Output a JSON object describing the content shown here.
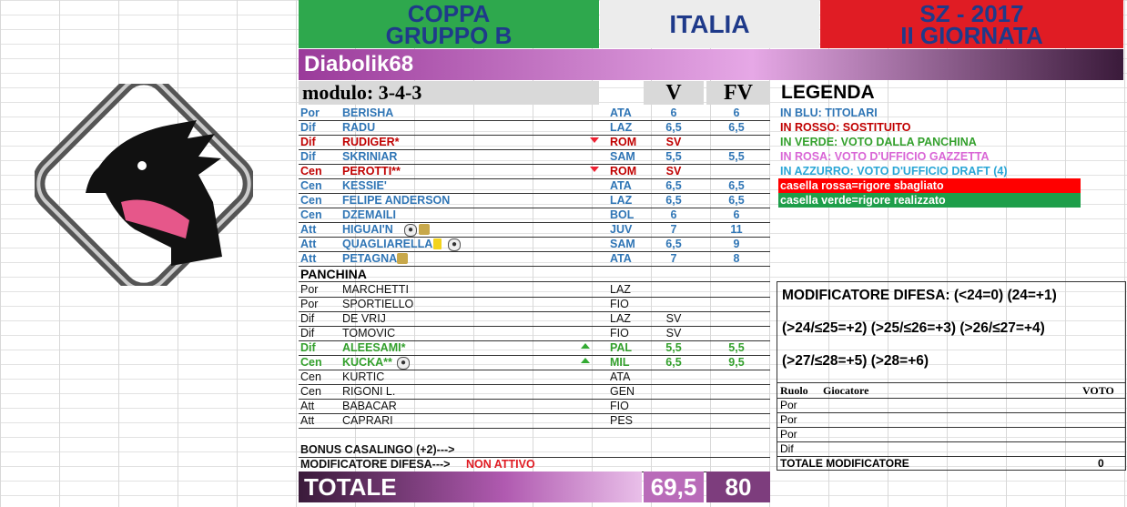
{
  "header": {
    "left_line1": "COPPA",
    "left_line2": "GRUPPO B",
    "center": "ITALIA",
    "right_line1": "SZ - 2017",
    "right_line2": "II GIORNATA",
    "colors": {
      "left": "#2ea84d",
      "center": "#ececec",
      "right": "#e01c24"
    }
  },
  "team_name": "Diabolik68",
  "modulo": "modulo: 3-4-3",
  "col_v": "V",
  "col_fv": "FV",
  "starters": [
    {
      "role": "Por",
      "name": "BERISHA",
      "team": "ATA",
      "v": "6",
      "fv": "6",
      "color": "blue"
    },
    {
      "role": "Dif",
      "name": "RADU",
      "team": "LAZ",
      "v": "6,5",
      "fv": "6,5",
      "color": "blue"
    },
    {
      "role": "Dif",
      "name": "RUDIGER*",
      "team": "ROM",
      "v": "SV",
      "fv": "",
      "color": "red",
      "marker": "down"
    },
    {
      "role": "Dif",
      "name": "SKRINIAR",
      "team": "SAM",
      "v": "5,5",
      "fv": "5,5",
      "color": "blue"
    },
    {
      "role": "Cen",
      "name": "PEROTTI**",
      "team": "ROM",
      "v": "SV",
      "fv": "",
      "color": "red",
      "marker": "down"
    },
    {
      "role": "Cen",
      "name": "KESSIE'",
      "team": "ATA",
      "v": "6,5",
      "fv": "6,5",
      "color": "blue"
    },
    {
      "role": "Cen",
      "name": "FELIPE ANDERSON",
      "team": "LAZ",
      "v": "6,5",
      "fv": "6,5",
      "color": "blue"
    },
    {
      "role": "Cen",
      "name": "DZEMAILI",
      "team": "BOL",
      "v": "6",
      "fv": "6",
      "color": "blue"
    },
    {
      "role": "Att",
      "name": "HIGUAI'N",
      "team": "JUV",
      "v": "7",
      "fv": "11",
      "color": "blue",
      "icons": [
        "ball",
        "boot"
      ]
    },
    {
      "role": "Att",
      "name": "QUAGLIARELLA",
      "team": "SAM",
      "v": "6,5",
      "fv": "9",
      "color": "blue",
      "icons": [
        "card",
        "ball"
      ]
    },
    {
      "role": "Att",
      "name": "PETAGNA",
      "team": "ATA",
      "v": "7",
      "fv": "8",
      "color": "blue",
      "icons": [
        "boot"
      ]
    }
  ],
  "panchina_label": "PANCHINA",
  "bench": [
    {
      "role": "Por",
      "name": "MARCHETTI",
      "team": "LAZ",
      "v": "",
      "fv": "",
      "color": "black"
    },
    {
      "role": "Por",
      "name": "SPORTIELLO",
      "team": "FIO",
      "v": "",
      "fv": "",
      "color": "black"
    },
    {
      "role": "Dif",
      "name": "DE VRIJ",
      "team": "LAZ",
      "v": "SV",
      "fv": "",
      "color": "black"
    },
    {
      "role": "Dif",
      "name": "TOMOVIC",
      "team": "FIO",
      "v": "SV",
      "fv": "",
      "color": "black"
    },
    {
      "role": "Dif",
      "name": "ALEESAMI*",
      "team": "PAL",
      "v": "5,5",
      "fv": "5,5",
      "color": "green",
      "marker": "up"
    },
    {
      "role": "Cen",
      "name": "KUCKA**",
      "team": "MIL",
      "v": "6,5",
      "fv": "9,5",
      "color": "green",
      "marker": "up",
      "icons": [
        "ball"
      ]
    },
    {
      "role": "Cen",
      "name": "KURTIC",
      "team": "ATA",
      "v": "",
      "fv": "",
      "color": "black"
    },
    {
      "role": "Cen",
      "name": "RIGONI L.",
      "team": "GEN",
      "v": "",
      "fv": "",
      "color": "black"
    },
    {
      "role": "Att",
      "name": "BABACAR",
      "team": "FIO",
      "v": "",
      "fv": "",
      "color": "black"
    },
    {
      "role": "Att",
      "name": "CAPRARI",
      "team": "PES",
      "v": "",
      "fv": "",
      "color": "black"
    }
  ],
  "bonus_casalingo": "BONUS CASALINGO (+2)--->",
  "modificatore_label": "MODIFICATORE DIFESA--->",
  "modificatore_status": "NON ATTIVO",
  "totale": {
    "label": "TOTALE",
    "v": "69,5",
    "fv": "80"
  },
  "legend": {
    "title": "LEGENDA",
    "items": [
      {
        "text": "IN BLU: TITOLARI",
        "color": "#2f75b5",
        "bg": ""
      },
      {
        "text": "IN ROSSO: SOSTITUITO",
        "color": "#c00000",
        "bg": ""
      },
      {
        "text": "IN VERDE: VOTO DALLA PANCHINA",
        "color": "#33a02c",
        "bg": ""
      },
      {
        "text": "IN ROSA: VOTO D'UFFICIO GAZZETTA",
        "color": "#d966d6",
        "bg": ""
      },
      {
        "text": "IN AZZURRO: VOTO D'UFFICIO DRAFT (4)",
        "color": "#2aa6d6",
        "bg": ""
      },
      {
        "text": "casella rossa=rigore sbagliato",
        "color": "#ffffff",
        "bg": "#ff0000"
      },
      {
        "text": "casella verde=rigore realizzato",
        "color": "#ffffff",
        "bg": "#1e9e4a"
      }
    ]
  },
  "modificatore_box": {
    "line1": "MODIFICATORE DIFESA: (<24=0) (24=+1)",
    "line2": "(>24/≤25=+2) (>25/≤26=+3) (>26/≤27=+4)",
    "line3": "(>27/≤28=+5) (>28=+6)"
  },
  "mod_table": {
    "headers": {
      "ruolo": "Ruolo",
      "giocatore": "Giocatore",
      "voto": "VOTO"
    },
    "rows": [
      "Por",
      "Por",
      "Por",
      "Dif"
    ],
    "total_label": "TOTALE MODIFICATORE",
    "total_value": "0"
  }
}
